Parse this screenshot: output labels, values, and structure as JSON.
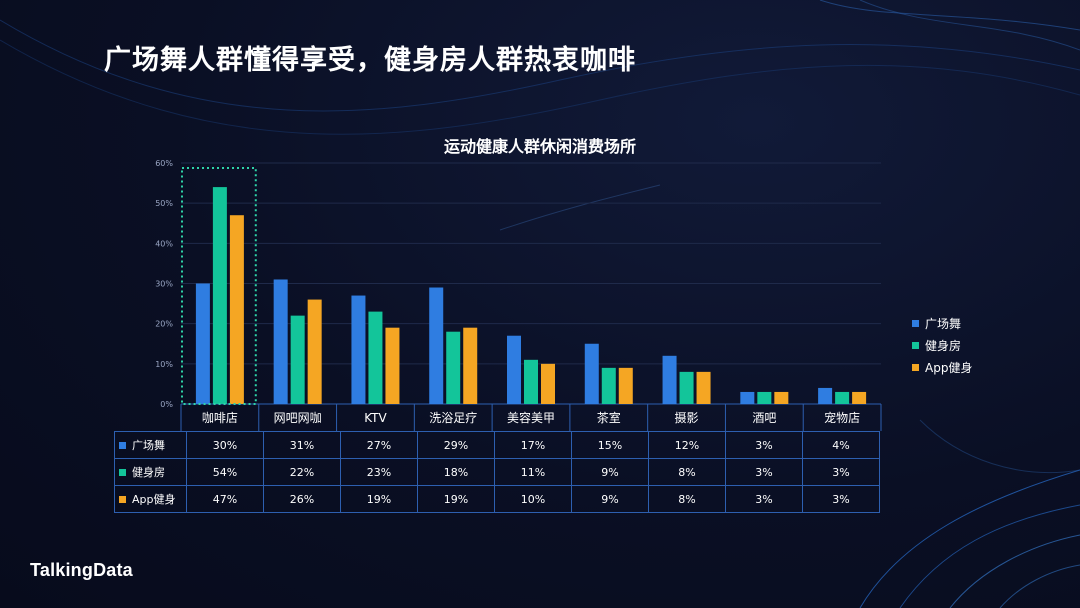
{
  "page_title": "广场舞人群懂得享受，健身房人群热衷咖啡",
  "brand": "TalkingData",
  "colors": {
    "background": "#0a0f24",
    "series": [
      "#2f7de1",
      "#13c59a",
      "#f5a623"
    ],
    "highlight_box": "#2fd3a8",
    "table_border": "#2d5fb0"
  },
  "chart_data": {
    "type": "bar",
    "title": "运动健康人群休闲消费场所",
    "categories": [
      "咖啡店",
      "网吧网咖",
      "KTV",
      "洗浴足疗",
      "美容美甲",
      "茶室",
      "摄影",
      "酒吧",
      "宠物店"
    ],
    "series": [
      {
        "name": "广场舞",
        "values": [
          30,
          31,
          27,
          29,
          17,
          15,
          12,
          3,
          4
        ],
        "labels": [
          "30%",
          "31%",
          "27%",
          "29%",
          "17%",
          "15%",
          "12%",
          "3%",
          "4%"
        ]
      },
      {
        "name": "健身房",
        "values": [
          54,
          22,
          23,
          18,
          11,
          9,
          8,
          3,
          3
        ],
        "labels": [
          "54%",
          "22%",
          "23%",
          "18%",
          "11%",
          "9%",
          "8%",
          "3%",
          "3%"
        ]
      },
      {
        "name": "App健身",
        "values": [
          47,
          26,
          19,
          19,
          10,
          9,
          8,
          3,
          3
        ],
        "labels": [
          "47%",
          "26%",
          "19%",
          "19%",
          "10%",
          "9%",
          "8%",
          "3%",
          "3%"
        ]
      }
    ],
    "y_ticks": [
      "0%",
      "10%",
      "20%",
      "30%",
      "40%",
      "50%",
      "60%"
    ],
    "ylim": [
      0,
      60
    ],
    "highlight_category": "咖啡店",
    "legend_position": "right",
    "grid": true
  }
}
